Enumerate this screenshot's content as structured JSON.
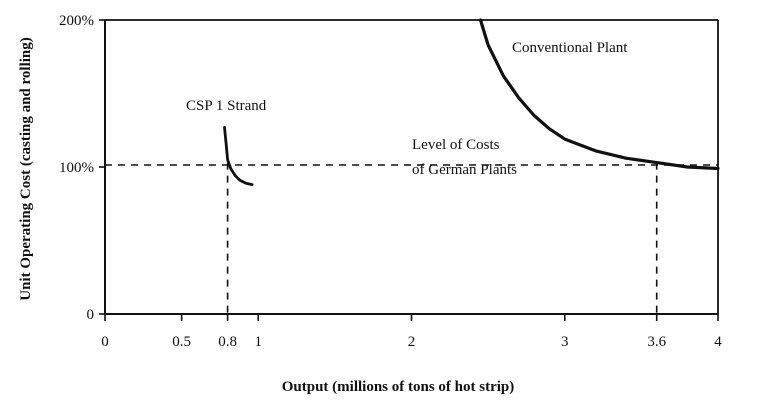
{
  "chart_data": {
    "type": "line",
    "title": "",
    "xlabel": "Output (millions of tons of hot strip)",
    "ylabel": "Unit Operating Cost (casting and rolling)",
    "xlim": [
      0,
      4
    ],
    "ylim": [
      0,
      200
    ],
    "x_ticks": [
      {
        "value": 0,
        "label": "0"
      },
      {
        "value": 0.5,
        "label": "0.5"
      },
      {
        "value": 0.8,
        "label": "0.8"
      },
      {
        "value": 1,
        "label": "1"
      },
      {
        "value": 2,
        "label": "2"
      },
      {
        "value": 3,
        "label": "3"
      },
      {
        "value": 3.6,
        "label": "3.6"
      },
      {
        "value": 4,
        "label": "4"
      }
    ],
    "y_ticks": [
      {
        "value": 0,
        "label": "0"
      },
      {
        "value": 100,
        "label": "100%"
      },
      {
        "value": 200,
        "label": "200%"
      }
    ],
    "grid": false,
    "series": [
      {
        "name": "CSP 1 Strand",
        "color": "#111111",
        "points": [
          [
            0.78,
            127
          ],
          [
            0.79,
            116
          ],
          [
            0.8,
            105
          ],
          [
            0.82,
            99
          ],
          [
            0.85,
            94
          ],
          [
            0.88,
            91
          ],
          [
            0.92,
            89
          ],
          [
            0.96,
            88
          ]
        ]
      },
      {
        "name": "Conventional Plant",
        "color": "#111111",
        "points": [
          [
            2.45,
            200
          ],
          [
            2.5,
            183
          ],
          [
            2.6,
            162
          ],
          [
            2.7,
            147
          ],
          [
            2.8,
            135
          ],
          [
            2.9,
            126
          ],
          [
            3.0,
            119
          ],
          [
            3.2,
            111
          ],
          [
            3.4,
            106
          ],
          [
            3.6,
            103
          ],
          [
            3.8,
            100
          ],
          [
            4.0,
            99
          ]
        ]
      }
    ],
    "reference_line": {
      "y": 100,
      "label_line1": "Level of Costs",
      "label_line2": "of German Plants",
      "style": "dashed"
    },
    "drop_lines": [
      {
        "x": 0.8,
        "y": 103
      },
      {
        "x": 3.6,
        "y": 103
      }
    ],
    "annotations": [
      {
        "text": "CSP 1 Strand",
        "x": 0.78,
        "y": 140
      },
      {
        "text": "Conventional Plant",
        "x": 2.85,
        "y": 177
      }
    ]
  }
}
